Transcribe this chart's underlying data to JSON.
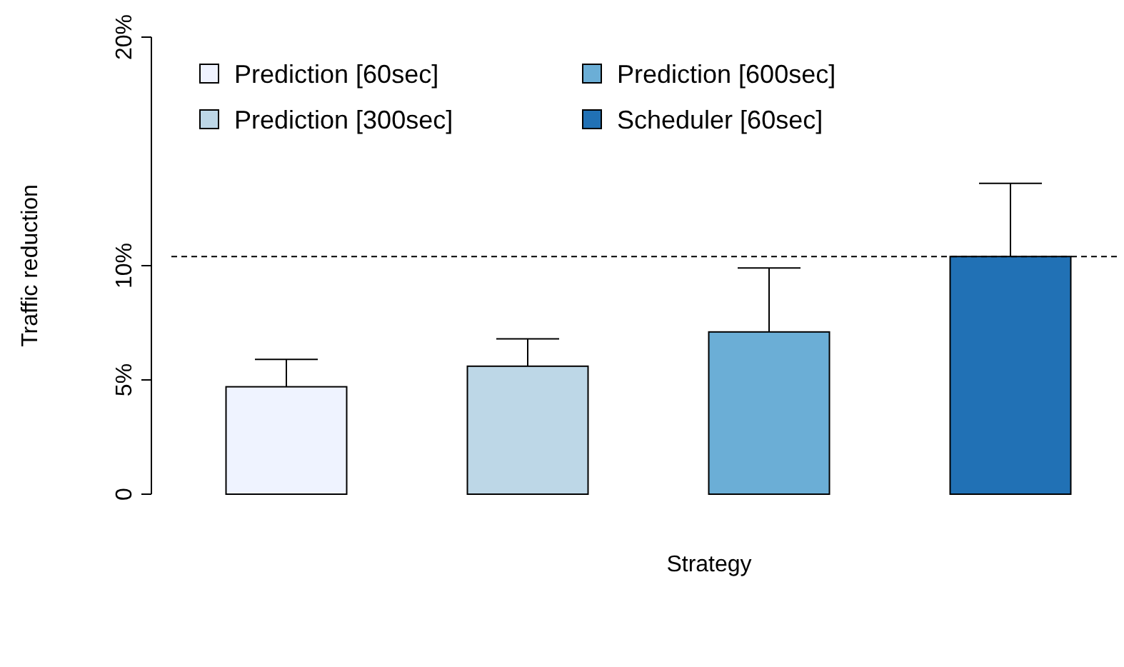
{
  "chart_data": {
    "type": "bar",
    "xlabel": "Strategy",
    "ylabel": "Traffic reduction",
    "categories": [
      null,
      null,
      null,
      null
    ],
    "series": [
      {
        "name": "Prediction [60sec]",
        "color": "#eff3ff",
        "values": [
          4.7,
          null,
          null,
          null
        ],
        "errors": [
          [
            4.7,
            5.9
          ],
          null,
          null,
          null
        ]
      },
      {
        "name": "Prediction [300sec]",
        "color": "#bdd7e7",
        "values": [
          null,
          5.6,
          null,
          null
        ],
        "errors": [
          null,
          [
            5.6,
            6.8
          ],
          null,
          null
        ]
      },
      {
        "name": "Prediction [600sec]",
        "color": "#6baed6",
        "values": [
          null,
          null,
          7.1,
          null
        ],
        "errors": [
          null,
          null,
          [
            7.1,
            9.9
          ],
          null
        ]
      },
      {
        "name": "Scheduler [60sec]",
        "color": "#2171b5",
        "values": [
          null,
          null,
          null,
          10.4
        ],
        "errors": [
          null,
          null,
          null,
          [
            10.4,
            13.6
          ]
        ]
      }
    ],
    "ylim": [
      0,
      20
    ],
    "yticks": [
      {
        "value": 0,
        "label": "0"
      },
      {
        "value": 5,
        "label": "5%"
      },
      {
        "value": 10,
        "label": "10%"
      },
      {
        "value": 20,
        "label": "20%"
      }
    ],
    "ref_lines": [
      {
        "axis": "y",
        "value": 10.4,
        "label": null,
        "line_style": "dashed"
      }
    ],
    "legend": "top left",
    "grid": false
  }
}
